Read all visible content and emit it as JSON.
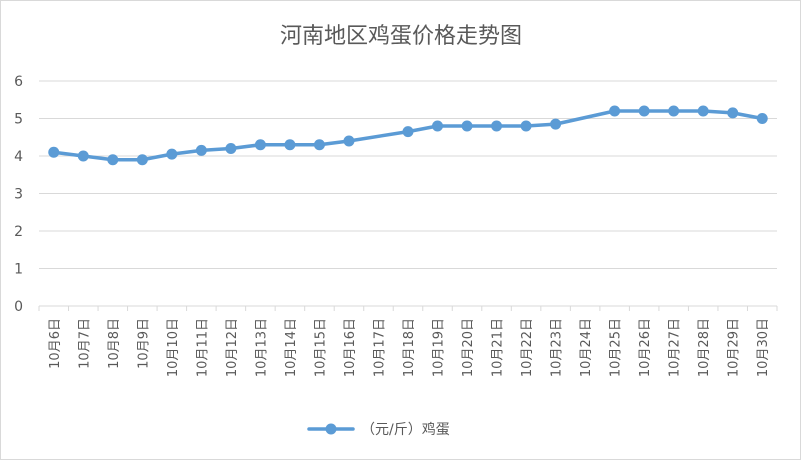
{
  "chart_data": {
    "type": "line",
    "title": "河南地区鸡蛋价格走势图",
    "xlabel": "",
    "ylabel": "",
    "ylim": [
      0,
      6
    ],
    "yticks": [
      0,
      1,
      2,
      3,
      4,
      5,
      6
    ],
    "grid": true,
    "legend_position": "bottom",
    "categories": [
      "10月6日",
      "10月7日",
      "10月8日",
      "10月9日",
      "10月10日",
      "10月11日",
      "10月12日",
      "10月13日",
      "10月14日",
      "10月15日",
      "10月16日",
      "10月17日",
      "10月18日",
      "10月19日",
      "10月20日",
      "10月21日",
      "10月22日",
      "10月23日",
      "10月24日",
      "10月25日",
      "10月26日",
      "10月27日",
      "10月28日",
      "10月29日",
      "10月30日"
    ],
    "series": [
      {
        "name": "（元/斤）鸡蛋",
        "color": "#5b9bd5",
        "values": [
          4.1,
          4.0,
          3.9,
          3.9,
          4.05,
          4.15,
          4.2,
          4.3,
          4.3,
          4.3,
          4.4,
          null,
          4.65,
          4.8,
          4.8,
          4.8,
          4.8,
          4.85,
          null,
          5.2,
          5.2,
          5.2,
          5.2,
          5.15,
          5.0
        ]
      }
    ]
  }
}
